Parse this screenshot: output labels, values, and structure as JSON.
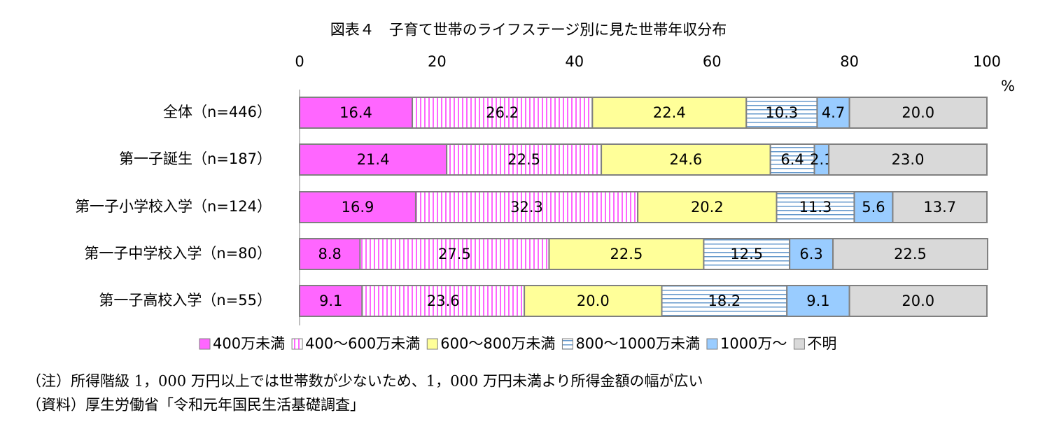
{
  "chart_data": {
    "type": "stacked-bar-horizontal",
    "title": "図表４　子育て世帯のライフステージ別に見た世帯年収分布",
    "categories": [
      "全体（n=446）",
      "第一子誕生（n=187）",
      "第一子小学校入学（n=124）",
      "第一子中学校入学（n=80）",
      "第一子高校入学（n=55）"
    ],
    "series": [
      {
        "name": "400万未満",
        "color": "#ff66ff",
        "pattern": "solid",
        "values": [
          16.4,
          21.4,
          16.9,
          8.8,
          9.1
        ],
        "value_labels": [
          "16.4",
          "21.4",
          "16.9",
          "8.8",
          "9.1"
        ]
      },
      {
        "name": "400～600万未満",
        "color": "#ff66ff",
        "pattern": "vertical",
        "values": [
          26.2,
          22.5,
          32.3,
          27.5,
          23.6
        ],
        "value_labels": [
          "26.2",
          "22.5",
          "32.3",
          "27.5",
          "23.6"
        ]
      },
      {
        "name": "600～800万未満",
        "color": "#ffff99",
        "pattern": "solid",
        "values": [
          22.4,
          24.6,
          20.2,
          22.5,
          20.0
        ],
        "value_labels": [
          "22.4",
          "24.6",
          "20.2",
          "22.5",
          "20.0"
        ]
      },
      {
        "name": "800～1000万未満",
        "color": "#6699cc",
        "pattern": "horizontal",
        "values": [
          10.3,
          6.4,
          11.3,
          12.5,
          18.2
        ],
        "value_labels": [
          "10.3",
          "6.4",
          "11.3",
          "12.5",
          "18.2"
        ]
      },
      {
        "name": "1000万～",
        "color": "#99ccff",
        "pattern": "solid",
        "values": [
          4.7,
          2.1,
          5.6,
          6.3,
          9.1
        ],
        "value_labels": [
          "4.7",
          "2.1",
          "5.6",
          "6.3",
          "9.1"
        ]
      },
      {
        "name": "不明",
        "color": "#d9d9d9",
        "pattern": "solid",
        "values": [
          20.0,
          23.0,
          13.7,
          22.5,
          20.0
        ],
        "value_labels": [
          "20.0",
          "23.0",
          "13.7",
          "22.5",
          "20.0"
        ]
      }
    ],
    "xlim": [
      0,
      100
    ],
    "xticks": [
      0,
      20,
      40,
      60,
      80,
      100
    ],
    "x_unit": "%",
    "legend": "bottom",
    "notes": [
      "（注）所得階級 1，000 万円以上では世帯数が少ないため、1，000 万円未満より所得金額の幅が広い",
      "（資料）厚生労働省「令和元年国民生活基礎調査」"
    ]
  }
}
